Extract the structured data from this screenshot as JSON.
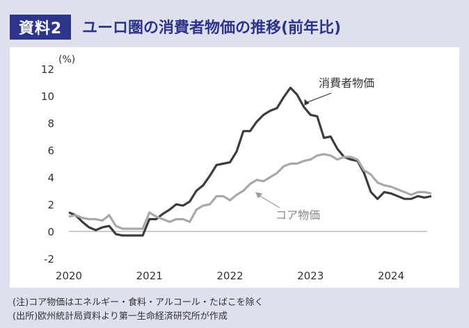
{
  "header": {
    "badge": "資料2",
    "title": "ユーロ圏の消費者物価の推移(前年比)"
  },
  "notes": {
    "note": "(注)コア物価はエネルギー・食料・アルコール・たばこを除く",
    "source": "(出所)欧州統計局資料より第一生命経済研究所が作成"
  },
  "colors": {
    "header_blue": "#2c3589",
    "cpi_line": "#3c3c3c",
    "core_line": "#a8a8a8",
    "background": "#dfe0ee"
  },
  "chart_data": {
    "type": "line",
    "yunit": "(%)",
    "ylim": [
      -2,
      12
    ],
    "yticks": [
      -2,
      0,
      2,
      4,
      6,
      8,
      10,
      12
    ],
    "xlim": [
      "2020-01",
      "2024-04"
    ],
    "xticks": [
      "2020",
      "2021",
      "2022",
      "2023",
      "2024"
    ],
    "grid": false,
    "series": [
      {
        "name": "消費者物価",
        "values": [
          [
            "2020-01",
            1.4
          ],
          [
            "2020-02",
            1.2
          ],
          [
            "2020-03",
            0.7
          ],
          [
            "2020-04",
            0.3
          ],
          [
            "2020-05",
            0.1
          ],
          [
            "2020-06",
            0.3
          ],
          [
            "2020-07",
            0.4
          ],
          [
            "2020-08",
            -0.2
          ],
          [
            "2020-09",
            -0.3
          ],
          [
            "2020-10",
            -0.3
          ],
          [
            "2020-11",
            -0.3
          ],
          [
            "2020-12",
            -0.3
          ],
          [
            "2021-01",
            0.9
          ],
          [
            "2021-02",
            0.9
          ],
          [
            "2021-03",
            1.3
          ],
          [
            "2021-04",
            1.6
          ],
          [
            "2021-05",
            2.0
          ],
          [
            "2021-06",
            1.9
          ],
          [
            "2021-07",
            2.2
          ],
          [
            "2021-08",
            3.0
          ],
          [
            "2021-09",
            3.4
          ],
          [
            "2021-10",
            4.1
          ],
          [
            "2021-11",
            4.9
          ],
          [
            "2021-12",
            5.0
          ],
          [
            "2022-01",
            5.1
          ],
          [
            "2022-02",
            5.9
          ],
          [
            "2022-03",
            7.4
          ],
          [
            "2022-04",
            7.4
          ],
          [
            "2022-05",
            8.1
          ],
          [
            "2022-06",
            8.6
          ],
          [
            "2022-07",
            8.9
          ],
          [
            "2022-08",
            9.1
          ],
          [
            "2022-09",
            9.9
          ],
          [
            "2022-10",
            10.6
          ],
          [
            "2022-11",
            10.1
          ],
          [
            "2022-12",
            9.2
          ],
          [
            "2023-01",
            8.6
          ],
          [
            "2023-02",
            8.5
          ],
          [
            "2023-03",
            6.9
          ],
          [
            "2023-04",
            7.0
          ],
          [
            "2023-05",
            6.1
          ],
          [
            "2023-06",
            5.5
          ],
          [
            "2023-07",
            5.3
          ],
          [
            "2023-08",
            5.2
          ],
          [
            "2023-09",
            4.3
          ],
          [
            "2023-10",
            2.9
          ],
          [
            "2023-11",
            2.4
          ],
          [
            "2023-12",
            2.9
          ],
          [
            "2024-01",
            2.8
          ],
          [
            "2024-02",
            2.6
          ],
          [
            "2024-03",
            2.4
          ],
          [
            "2024-04",
            2.4
          ],
          [
            "2024-05",
            2.6
          ],
          [
            "2024-06",
            2.5
          ],
          [
            "2024-07",
            2.6
          ]
        ]
      },
      {
        "name": "コア物価",
        "values": [
          [
            "2020-01",
            1.1
          ],
          [
            "2020-02",
            1.2
          ],
          [
            "2020-03",
            1.0
          ],
          [
            "2020-04",
            0.9
          ],
          [
            "2020-05",
            0.9
          ],
          [
            "2020-06",
            0.8
          ],
          [
            "2020-07",
            1.2
          ],
          [
            "2020-08",
            0.4
          ],
          [
            "2020-09",
            0.2
          ],
          [
            "2020-10",
            0.2
          ],
          [
            "2020-11",
            0.2
          ],
          [
            "2020-12",
            0.2
          ],
          [
            "2021-01",
            1.4
          ],
          [
            "2021-02",
            1.1
          ],
          [
            "2021-03",
            0.9
          ],
          [
            "2021-04",
            0.7
          ],
          [
            "2021-05",
            0.9
          ],
          [
            "2021-06",
            0.9
          ],
          [
            "2021-07",
            0.7
          ],
          [
            "2021-08",
            1.6
          ],
          [
            "2021-09",
            1.9
          ],
          [
            "2021-10",
            2.0
          ],
          [
            "2021-11",
            2.6
          ],
          [
            "2021-12",
            2.6
          ],
          [
            "2022-01",
            2.3
          ],
          [
            "2022-02",
            2.7
          ],
          [
            "2022-03",
            3.0
          ],
          [
            "2022-04",
            3.5
          ],
          [
            "2022-05",
            3.8
          ],
          [
            "2022-06",
            3.7
          ],
          [
            "2022-07",
            4.0
          ],
          [
            "2022-08",
            4.3
          ],
          [
            "2022-09",
            4.8
          ],
          [
            "2022-10",
            5.0
          ],
          [
            "2022-11",
            5.0
          ],
          [
            "2022-12",
            5.2
          ],
          [
            "2023-01",
            5.3
          ],
          [
            "2023-02",
            5.6
          ],
          [
            "2023-03",
            5.7
          ],
          [
            "2023-04",
            5.6
          ],
          [
            "2023-05",
            5.3
          ],
          [
            "2023-06",
            5.5
          ],
          [
            "2023-07",
            5.5
          ],
          [
            "2023-08",
            5.3
          ],
          [
            "2023-09",
            4.5
          ],
          [
            "2023-10",
            4.2
          ],
          [
            "2023-11",
            3.6
          ],
          [
            "2023-12",
            3.4
          ],
          [
            "2024-01",
            3.3
          ],
          [
            "2024-02",
            3.1
          ],
          [
            "2024-03",
            2.9
          ],
          [
            "2024-04",
            2.7
          ],
          [
            "2024-05",
            2.9
          ],
          [
            "2024-06",
            2.9
          ],
          [
            "2024-07",
            2.8
          ]
        ]
      }
    ],
    "annotations": [
      {
        "text": "消費者物価",
        "series": "消費者物価",
        "point": [
          "2022-12",
          9.2
        ]
      },
      {
        "text": "コア物価",
        "series": "コア物価",
        "point": [
          "2022-05",
          3.0
        ]
      }
    ]
  }
}
